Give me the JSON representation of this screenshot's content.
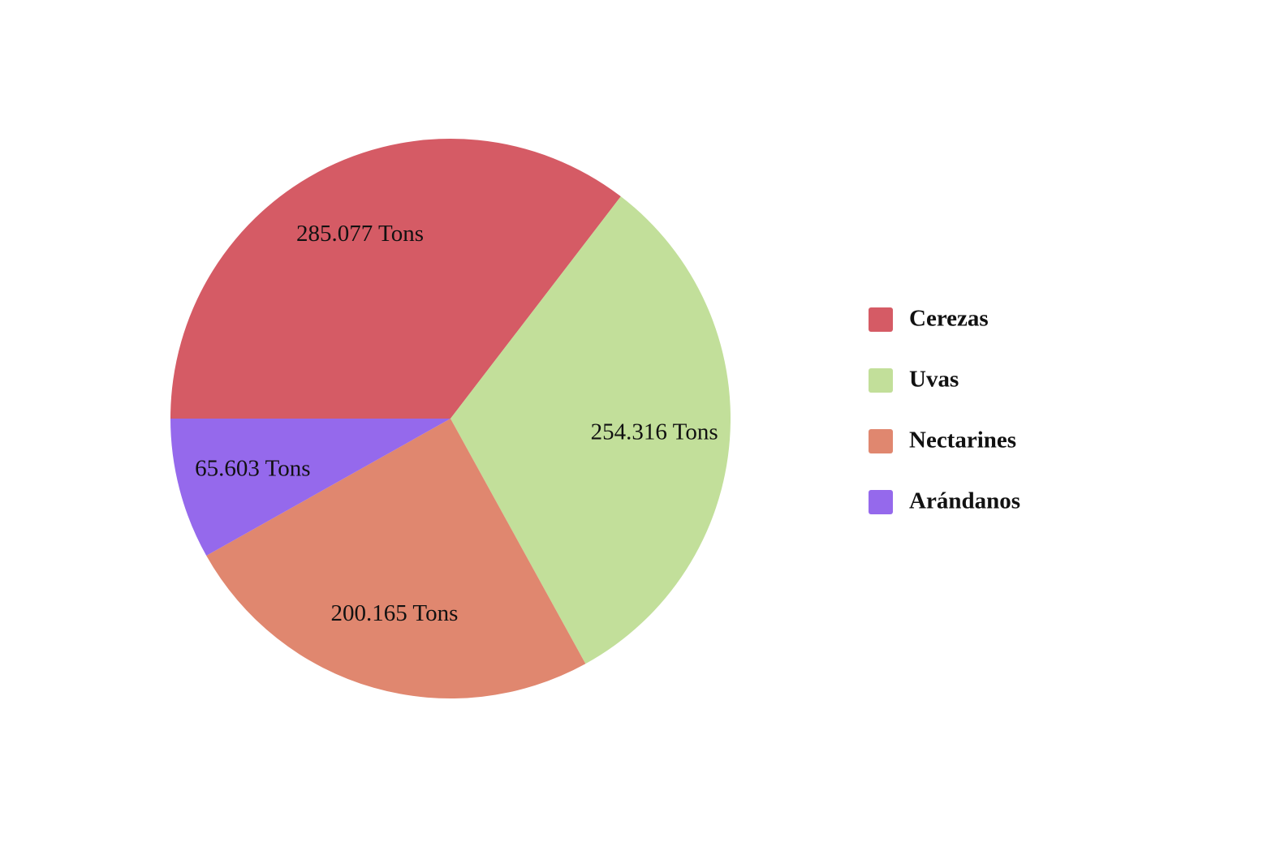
{
  "chart_data": {
    "type": "pie",
    "categories": [
      "Cerezas",
      "Uvas",
      "Nectarines",
      "Arándanos"
    ],
    "values": [
      285.077,
      254.316,
      200.165,
      65.603
    ],
    "value_labels": [
      "285.077 Tons",
      "254.316 Tons",
      "200.165 Tons",
      "65.603 Tons"
    ],
    "colors": [
      "#d55b65",
      "#c2df9a",
      "#e0876f",
      "#9569ec"
    ],
    "legend": "right"
  }
}
